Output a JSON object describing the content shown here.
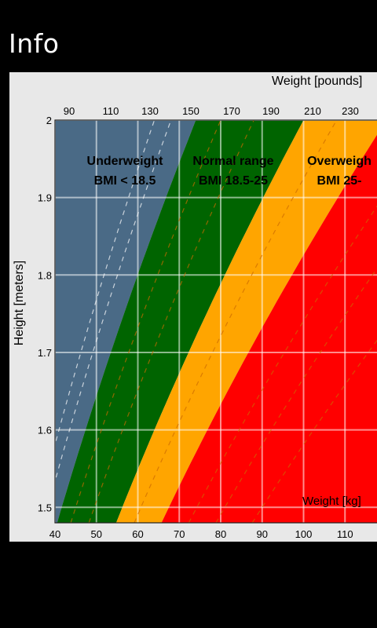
{
  "page": {
    "title": "Info"
  },
  "colors": {
    "underweight": "#4a6a86",
    "normal": "#006400",
    "overweight": "#ffa500",
    "obese": "#ff0000",
    "panel": "#e8e8e8",
    "background": "#000000"
  },
  "chart_data": {
    "type": "area",
    "title": "",
    "xlabel": "Weight [kg]",
    "x2label": "Weight [pounds]",
    "ylabel": "Height [meters]",
    "xlim": [
      40,
      120
    ],
    "ylim": [
      1.48,
      2.0
    ],
    "x_ticks": [
      "40",
      "50",
      "60",
      "70",
      "80",
      "90",
      "100",
      "110"
    ],
    "x2_ticks": [
      "90",
      "110",
      "130",
      "150",
      "170",
      "190",
      "210",
      "230"
    ],
    "y_ticks": [
      "2",
      "1.9",
      "1.8",
      "1.7",
      "1.6",
      "1.5"
    ],
    "grid": true,
    "series": [
      {
        "key": "underweight",
        "name": "Underweight",
        "label": "BMI < 18.5",
        "bmi_min": 0,
        "bmi_max": 18.5
      },
      {
        "key": "normal",
        "name": "Normal range",
        "label": "BMI 18.5-25",
        "bmi_min": 18.5,
        "bmi_max": 25
      },
      {
        "key": "overweight",
        "name": "Overweigh",
        "label": "BMI 25-",
        "bmi_min": 25,
        "bmi_max": 30
      },
      {
        "key": "obese",
        "name": "",
        "label": "",
        "bmi_min": 30,
        "bmi_max": 100
      }
    ]
  }
}
